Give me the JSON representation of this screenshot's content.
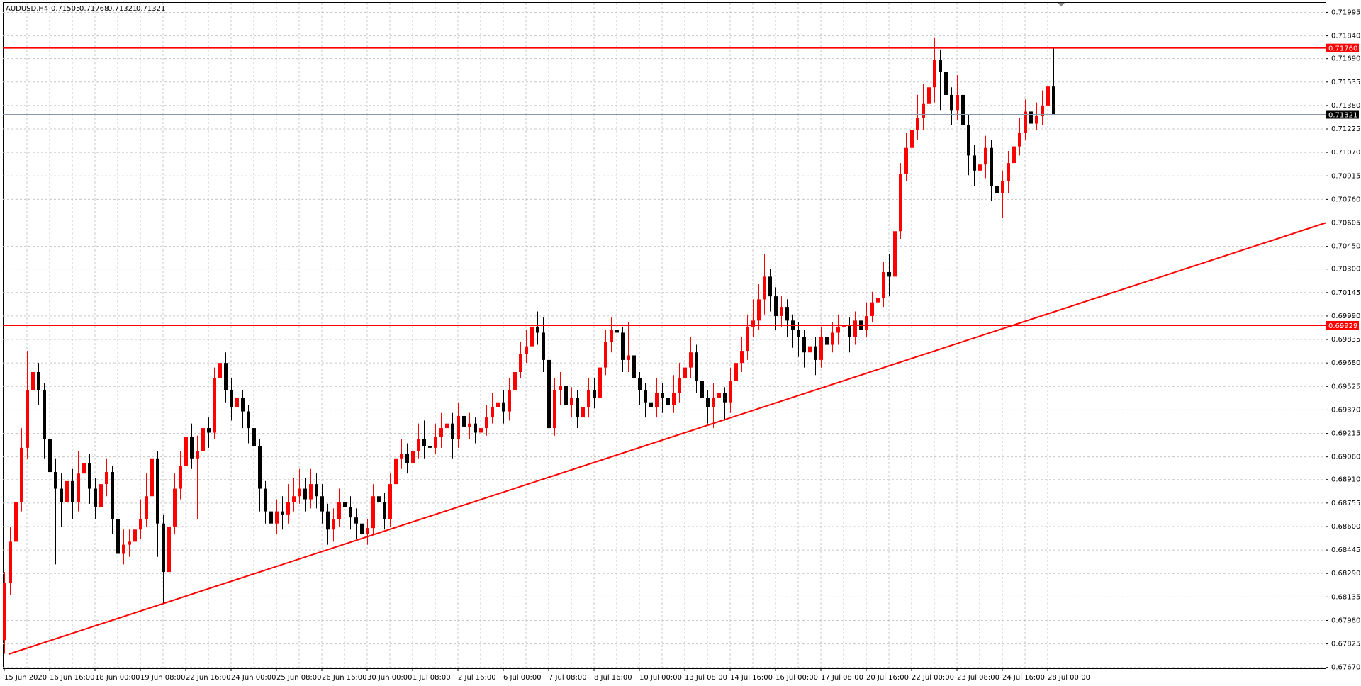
{
  "chart_data": {
    "type": "candlestick",
    "title": "AUDUSD,H4",
    "up_color": "#ff0000",
    "down_color": "#000000",
    "grid": true,
    "categories": [
      "15 Jun 2020",
      null,
      null,
      null,
      null,
      null,
      null,
      null,
      "16 Jun 16:00",
      null,
      null,
      null,
      null,
      null,
      null,
      null,
      "18 Jun 00:00",
      null,
      null,
      null,
      null,
      null,
      null,
      null,
      "19 Jun 08:00",
      null,
      null,
      null,
      null,
      null,
      null,
      null,
      "22 Jun 16:00",
      null,
      null,
      null,
      null,
      null,
      null,
      null,
      "24 Jun 00:00",
      null,
      null,
      null,
      null,
      null,
      null,
      null,
      "25 Jun 08:00",
      null,
      null,
      null,
      null,
      null,
      null,
      null,
      "26 Jun 16:00",
      null,
      null,
      null,
      null,
      null,
      null,
      null,
      "30 Jun 00:00",
      null,
      null,
      null,
      null,
      null,
      null,
      null,
      "1 Jul 08:00",
      null,
      null,
      null,
      null,
      null,
      null,
      null,
      "2 Jul 16:00",
      null,
      null,
      null,
      null,
      null,
      null,
      null,
      "6 Jul 00:00",
      null,
      null,
      null,
      null,
      null,
      null,
      null,
      "7 Jul 08:00",
      null,
      null,
      null,
      null,
      null,
      null,
      null,
      "8 Jul 16:00",
      null,
      null,
      null,
      null,
      null,
      null,
      null,
      "10 Jul 00:00",
      null,
      null,
      null,
      null,
      null,
      null,
      null,
      "13 Jul 08:00",
      null,
      null,
      null,
      null,
      null,
      null,
      null,
      "14 Jul 16:00",
      null,
      null,
      null,
      null,
      null,
      null,
      null,
      "16 Jul 00:00",
      null,
      null,
      null,
      null,
      null,
      null,
      null,
      "17 Jul 08:00",
      null,
      null,
      null,
      null,
      null,
      null,
      null,
      "20 Jul 16:00",
      null,
      null,
      null,
      null,
      null,
      null,
      null,
      "22 Jul 00:00",
      null,
      null,
      null,
      null,
      null,
      null,
      null,
      "23 Jul 08:00",
      null,
      null,
      null,
      null,
      null,
      null,
      null,
      "24 Jul 16:00",
      null,
      null,
      null,
      null,
      null,
      null,
      null,
      "28 Jul 00:00",
      null
    ],
    "open": [
      0.6785,
      0.6823,
      0.685,
      0.6876,
      0.6912,
      0.695,
      0.6962,
      0.695,
      0.6918,
      0.6896,
      0.6885,
      0.6876,
      0.689,
      0.6876,
      0.6895,
      0.6902,
      0.6885,
      0.6873,
      0.6888,
      0.6896,
      0.6865,
      0.6842,
      0.6848,
      0.685,
      0.6858,
      0.6865,
      0.688,
      0.6905,
      0.6862,
      0.683,
      0.686,
      0.6885,
      0.69,
      0.6919,
      0.6905,
      0.691,
      0.6925,
      0.6922,
      0.6958,
      0.6968,
      0.695,
      0.6939,
      0.6945,
      0.6936,
      0.6925,
      0.6913,
      0.6885,
      0.687,
      0.6862,
      0.687,
      0.6868,
      0.6876,
      0.688,
      0.6885,
      0.6878,
      0.6888,
      0.688,
      0.687,
      0.6858,
      0.6865,
      0.6876,
      0.6873,
      0.6866,
      0.6862,
      0.6855,
      0.6859,
      0.688,
      0.6876,
      0.6865,
      0.6888,
      0.6905,
      0.6908,
      0.6902,
      0.691,
      0.6918,
      0.6913,
      0.6912,
      0.6919,
      0.6925,
      0.6928,
      0.6918,
      0.6933,
      0.6926,
      0.6928,
      0.6922,
      0.6925,
      0.6932,
      0.6939,
      0.6942,
      0.6936,
      0.695,
      0.6962,
      0.6974,
      0.6979,
      0.6992,
      0.6988,
      0.697,
      0.6925,
      0.695,
      0.6953,
      0.694,
      0.6945,
      0.6932,
      0.6939,
      0.695,
      0.6945,
      0.6965,
      0.6982,
      0.699,
      0.6988,
      0.697,
      0.6973,
      0.6958,
      0.695,
      0.6942,
      0.6939,
      0.6948,
      0.6945,
      0.694,
      0.6948,
      0.6958,
      0.6965,
      0.6975,
      0.6956,
      0.6945,
      0.6939,
      0.6945,
      0.6948,
      0.6942,
      0.6956,
      0.6968,
      0.6976,
      0.6992,
      0.6996,
      0.701,
      0.7025,
      0.7012,
      0.6999,
      0.7005,
      0.6996,
      0.699,
      0.6985,
      0.6975,
      0.6979,
      0.697,
      0.6985,
      0.698,
      0.6988,
      0.6992,
      0.6993,
      0.6985,
      0.6996,
      0.699,
      0.6999,
      0.7008,
      0.7011,
      0.7028,
      0.7025,
      0.7055,
      0.7093,
      0.711,
      0.7122,
      0.713,
      0.7139,
      0.715,
      0.7168,
      0.716,
      0.7145,
      0.7135,
      0.7145,
      0.7125,
      0.7105,
      0.7095,
      0.7099,
      0.711,
      0.7085,
      0.708,
      0.7088,
      0.71,
      0.7111,
      0.712,
      0.7134,
      0.7126,
      0.7131,
      0.7138,
      0.71505
    ],
    "high": [
      0.683,
      0.686,
      0.6885,
      0.6925,
      0.6976,
      0.6972,
      0.6968,
      0.6955,
      0.6925,
      0.6905,
      0.6895,
      0.69,
      0.6898,
      0.691,
      0.691,
      0.6908,
      0.6892,
      0.69,
      0.6905,
      0.69,
      0.687,
      0.6858,
      0.6858,
      0.6868,
      0.6878,
      0.6895,
      0.6918,
      0.691,
      0.6868,
      0.6868,
      0.6895,
      0.691,
      0.6925,
      0.6928,
      0.692,
      0.6935,
      0.6932,
      0.6965,
      0.6976,
      0.6975,
      0.6958,
      0.6955,
      0.695,
      0.694,
      0.693,
      0.6918,
      0.689,
      0.6875,
      0.6878,
      0.688,
      0.6888,
      0.6892,
      0.6898,
      0.6892,
      0.6898,
      0.6895,
      0.6888,
      0.6875,
      0.6872,
      0.6885,
      0.6882,
      0.688,
      0.6872,
      0.6868,
      0.6865,
      0.6888,
      0.6885,
      0.6882,
      0.6895,
      0.6915,
      0.6918,
      0.6915,
      0.692,
      0.6928,
      0.693,
      0.6945,
      0.6928,
      0.6935,
      0.694,
      0.6935,
      0.6942,
      0.6955,
      0.6935,
      0.6932,
      0.6935,
      0.694,
      0.6948,
      0.6952,
      0.695,
      0.6958,
      0.697,
      0.6982,
      0.699,
      0.7,
      0.7002,
      0.6998,
      0.6975,
      0.6958,
      0.6962,
      0.6958,
      0.6952,
      0.695,
      0.6948,
      0.6958,
      0.6958,
      0.6975,
      0.699,
      0.6998,
      0.7002,
      0.6992,
      0.6995,
      0.6978,
      0.6962,
      0.6955,
      0.695,
      0.6958,
      0.6955,
      0.695,
      0.696,
      0.6968,
      0.6975,
      0.6985,
      0.698,
      0.6962,
      0.695,
      0.6955,
      0.6958,
      0.6952,
      0.6965,
      0.6978,
      0.6985,
      0.7,
      0.701,
      0.702,
      0.704,
      0.703,
      0.7018,
      0.7012,
      0.701,
      0.7,
      0.6995,
      0.699,
      0.6988,
      0.6985,
      0.6992,
      0.6992,
      0.6995,
      0.7,
      0.7002,
      0.6998,
      0.7002,
      0.7,
      0.7008,
      0.7015,
      0.702,
      0.7035,
      0.704,
      0.7062,
      0.71,
      0.712,
      0.7135,
      0.7145,
      0.7152,
      0.7165,
      0.7183,
      0.7175,
      0.7168,
      0.715,
      0.7158,
      0.715,
      0.7132,
      0.7112,
      0.711,
      0.7118,
      0.7115,
      0.7092,
      0.7095,
      0.7108,
      0.712,
      0.713,
      0.7142,
      0.714,
      0.714,
      0.7148,
      0.716,
      0.71768
    ],
    "low": [
      0.6776,
      0.6815,
      0.6843,
      0.687,
      0.6905,
      0.694,
      0.694,
      0.6905,
      0.688,
      0.6835,
      0.686,
      0.6868,
      0.6865,
      0.687,
      0.6885,
      0.6875,
      0.6865,
      0.6868,
      0.688,
      0.6855,
      0.6838,
      0.6835,
      0.684,
      0.6845,
      0.6852,
      0.686,
      0.6875,
      0.684,
      0.6809,
      0.6825,
      0.6855,
      0.6878,
      0.6895,
      0.6898,
      0.6865,
      0.6905,
      0.6912,
      0.6918,
      0.695,
      0.6942,
      0.693,
      0.6932,
      0.6925,
      0.6915,
      0.69,
      0.687,
      0.6862,
      0.6852,
      0.6855,
      0.6858,
      0.6862,
      0.687,
      0.6875,
      0.687,
      0.6872,
      0.6872,
      0.6862,
      0.6848,
      0.685,
      0.686,
      0.6865,
      0.6858,
      0.6852,
      0.6845,
      0.6848,
      0.6855,
      0.6835,
      0.6858,
      0.686,
      0.6882,
      0.6898,
      0.6895,
      0.6878,
      0.6905,
      0.6905,
      0.6905,
      0.6908,
      0.6912,
      0.6918,
      0.6905,
      0.6912,
      0.6918,
      0.6918,
      0.6915,
      0.6915,
      0.692,
      0.6928,
      0.6932,
      0.6928,
      0.693,
      0.6945,
      0.6958,
      0.6968,
      0.6975,
      0.698,
      0.6962,
      0.692,
      0.692,
      0.694,
      0.6932,
      0.6932,
      0.6925,
      0.6928,
      0.6932,
      0.6938,
      0.694,
      0.696,
      0.6975,
      0.6978,
      0.6962,
      0.6962,
      0.695,
      0.694,
      0.6932,
      0.6925,
      0.6932,
      0.6935,
      0.693,
      0.6935,
      0.6942,
      0.695,
      0.6958,
      0.6948,
      0.6935,
      0.6928,
      0.6925,
      0.6938,
      0.693,
      0.6935,
      0.695,
      0.6962,
      0.697,
      0.6985,
      0.699,
      0.7,
      0.7002,
      0.699,
      0.6992,
      0.6985,
      0.6978,
      0.6972,
      0.6965,
      0.6962,
      0.696,
      0.6965,
      0.6972,
      0.6975,
      0.698,
      0.6985,
      0.6975,
      0.698,
      0.6982,
      0.6985,
      0.6995,
      0.7002,
      0.7005,
      0.7012,
      0.702,
      0.705,
      0.7088,
      0.7105,
      0.7115,
      0.7122,
      0.713,
      0.714,
      0.7135,
      0.713,
      0.7125,
      0.7128,
      0.711,
      0.7092,
      0.7085,
      0.7088,
      0.709,
      0.7075,
      0.7068,
      0.7064,
      0.708,
      0.7092,
      0.7105,
      0.7115,
      0.7118,
      0.7122,
      0.7125,
      0.713,
      0.71321
    ],
    "close": [
      0.6823,
      0.685,
      0.6876,
      0.6912,
      0.695,
      0.6962,
      0.695,
      0.6918,
      0.6896,
      0.6885,
      0.6876,
      0.689,
      0.6876,
      0.6895,
      0.6902,
      0.6885,
      0.6873,
      0.6888,
      0.6896,
      0.6865,
      0.6842,
      0.6848,
      0.685,
      0.6858,
      0.6865,
      0.688,
      0.6905,
      0.6862,
      0.683,
      0.686,
      0.6885,
      0.69,
      0.6919,
      0.6905,
      0.691,
      0.6925,
      0.6922,
      0.6958,
      0.6968,
      0.695,
      0.6939,
      0.6945,
      0.6936,
      0.6925,
      0.6913,
      0.6885,
      0.687,
      0.6862,
      0.687,
      0.6868,
      0.6876,
      0.688,
      0.6885,
      0.6878,
      0.6888,
      0.688,
      0.687,
      0.6858,
      0.6865,
      0.6876,
      0.6873,
      0.6866,
      0.6862,
      0.6855,
      0.6859,
      0.688,
      0.6876,
      0.6865,
      0.6888,
      0.6905,
      0.6908,
      0.6902,
      0.691,
      0.6918,
      0.6913,
      0.6912,
      0.6919,
      0.6925,
      0.6928,
      0.6918,
      0.6933,
      0.6926,
      0.6928,
      0.6922,
      0.6925,
      0.6932,
      0.6939,
      0.6942,
      0.6936,
      0.695,
      0.6962,
      0.6974,
      0.6979,
      0.6992,
      0.6988,
      0.697,
      0.6925,
      0.695,
      0.6953,
      0.694,
      0.6945,
      0.6932,
      0.6939,
      0.695,
      0.6945,
      0.6965,
      0.6982,
      0.699,
      0.6988,
      0.697,
      0.6973,
      0.6958,
      0.695,
      0.6942,
      0.6939,
      0.6948,
      0.6945,
      0.694,
      0.6948,
      0.6958,
      0.6965,
      0.6975,
      0.6956,
      0.6945,
      0.6939,
      0.6945,
      0.6948,
      0.6942,
      0.6956,
      0.6968,
      0.6976,
      0.6992,
      0.6996,
      0.701,
      0.7025,
      0.7012,
      0.6999,
      0.7005,
      0.6996,
      0.699,
      0.6985,
      0.6975,
      0.6979,
      0.697,
      0.6985,
      0.698,
      0.6988,
      0.6992,
      0.6993,
      0.6985,
      0.6996,
      0.699,
      0.6999,
      0.7008,
      0.7011,
      0.7028,
      0.7025,
      0.7055,
      0.7093,
      0.711,
      0.7122,
      0.713,
      0.7139,
      0.715,
      0.7168,
      0.716,
      0.7145,
      0.7135,
      0.7145,
      0.7125,
      0.7105,
      0.7095,
      0.7099,
      0.711,
      0.7085,
      0.708,
      0.7088,
      0.71,
      0.7111,
      0.712,
      0.7134,
      0.7126,
      0.7131,
      0.7138,
      0.71505,
      0.71321
    ],
    "ylim": [
      0.67664,
      0.72058
    ],
    "yticks": [
      0.71995,
      {
        "value": 0.7184,
        "label": "0.71840"
      },
      {
        "value": 0.7169,
        "label": "0.71690"
      },
      0.71535,
      {
        "value": 0.7138,
        "label": "0.71380"
      },
      0.71225,
      {
        "value": 0.7107,
        "label": "0.71070"
      },
      0.70915,
      {
        "value": 0.7076,
        "label": "0.70760"
      },
      0.70605,
      {
        "value": 0.7045,
        "label": "0.70450"
      },
      {
        "value": 0.703,
        "label": "0.70300"
      },
      0.70145,
      {
        "value": 0.6999,
        "label": "0.69990"
      },
      0.69835,
      {
        "value": 0.6968,
        "label": "0.69680"
      },
      0.69525,
      {
        "value": 0.6937,
        "label": "0.69370"
      },
      0.69215,
      {
        "value": 0.6906,
        "label": "0.69060"
      },
      {
        "value": 0.6891,
        "label": "0.68910"
      },
      0.68755,
      {
        "value": 0.686,
        "label": "0.68600"
      },
      0.68445,
      {
        "value": 0.6829,
        "label": "0.68290"
      },
      0.68135,
      {
        "value": 0.6798,
        "label": "0.67980"
      },
      0.67825,
      {
        "value": 0.6767,
        "label": "0.67670"
      }
    ],
    "levels": [
      {
        "value": 0.7176,
        "label": "0.71760",
        "color": "#ff0000"
      },
      {
        "value": 0.69929,
        "label": "0.69929",
        "color": "#ff0000"
      }
    ],
    "bid_line_color": "#8a95a8",
    "trendline": {
      "y": [
        0.67757,
        0.70605
      ],
      "color": "#ff0000"
    }
  }
}
